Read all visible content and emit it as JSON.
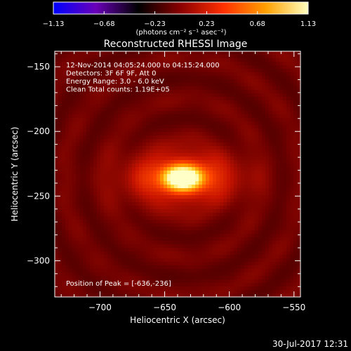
{
  "chart_data": {
    "type": "heatmap",
    "title": "Reconstructed RHESSI Image",
    "xlabel": "Heliocentric X (arcsec)",
    "ylabel": "Heliocentric Y (arcsec)",
    "xlim": [
      -735,
      -545
    ],
    "ylim": [
      -328,
      -138
    ],
    "x_ticks": [
      -700,
      -650,
      -600,
      -550
    ],
    "y_ticks": [
      -150,
      -200,
      -250,
      -300
    ],
    "x_tick_labels": [
      "−700",
      "−650",
      "−600",
      "−550"
    ],
    "y_tick_labels": [
      "−150",
      "−200",
      "−250",
      "−300"
    ],
    "colorbar": {
      "min": -1.13,
      "max": 1.13,
      "ticks": [
        -1.13,
        -0.68,
        -0.23,
        0.23,
        0.68,
        1.13
      ],
      "tick_labels": [
        "−1.13",
        "−0.68",
        "−0.23",
        "0.23",
        "0.68",
        "1.13"
      ],
      "label": "(photons cm⁻² s⁻¹ asec⁻²)",
      "colors": [
        "#0000ff",
        "#6a00b8",
        "#000000",
        "#8b0000",
        "#ff3000",
        "#ffa000",
        "#ffffc0"
      ]
    },
    "peak": {
      "x": -636,
      "y": -236,
      "value": 1.13
    },
    "annotations": [
      "12-Nov-2014 04:05:24.000 to 04:15:24.000",
      "Detectors: 3F 6F 9F, Att 0",
      "Energy Range: 3.0 - 6.0 keV",
      "Clean     Total counts: 1.19E+05"
    ],
    "peak_label": "Position of Peak = [-636,-236]"
  },
  "footer": {
    "timestamp": "30-Jul-2017 12:31"
  }
}
